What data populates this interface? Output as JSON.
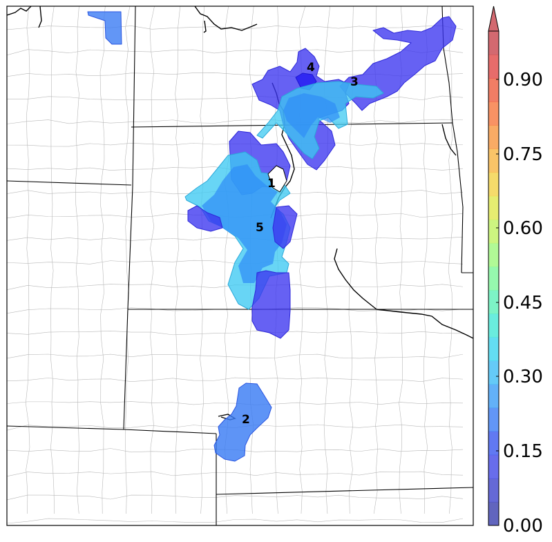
{
  "colorbar": {
    "ticks": [
      "0.00",
      "0.15",
      "0.30",
      "0.45",
      "0.60",
      "0.75",
      "0.90"
    ],
    "range": [
      0.0,
      1.0
    ],
    "extend": "max",
    "colors": [
      "#3a3fae",
      "#3f44cc",
      "#4249e6",
      "#3a58ef",
      "#3b7cf4",
      "#3c9ef6",
      "#3ebdf5",
      "#3dd6ef",
      "#45e7d6",
      "#5cf0b8",
      "#7cf69a",
      "#9ef77c",
      "#c1f360",
      "#e0e84e",
      "#f3d246",
      "#f7b542",
      "#f8963f",
      "#f6773d",
      "#ee5d3f",
      "#e14746",
      "#c8444c"
    ]
  },
  "regions": [
    {
      "id": "region-1",
      "label": "1"
    },
    {
      "id": "region-2",
      "label": "2"
    },
    {
      "id": "region-3",
      "label": "3"
    },
    {
      "id": "region-4",
      "label": "4"
    },
    {
      "id": "region-5",
      "label": "5"
    }
  ],
  "fill_colors": {
    "light_blue": "#3ec9f2",
    "mid_blue": "#2f8df7",
    "dark_blue": "#3b35f0",
    "deep_blue": "#2a22f2"
  }
}
